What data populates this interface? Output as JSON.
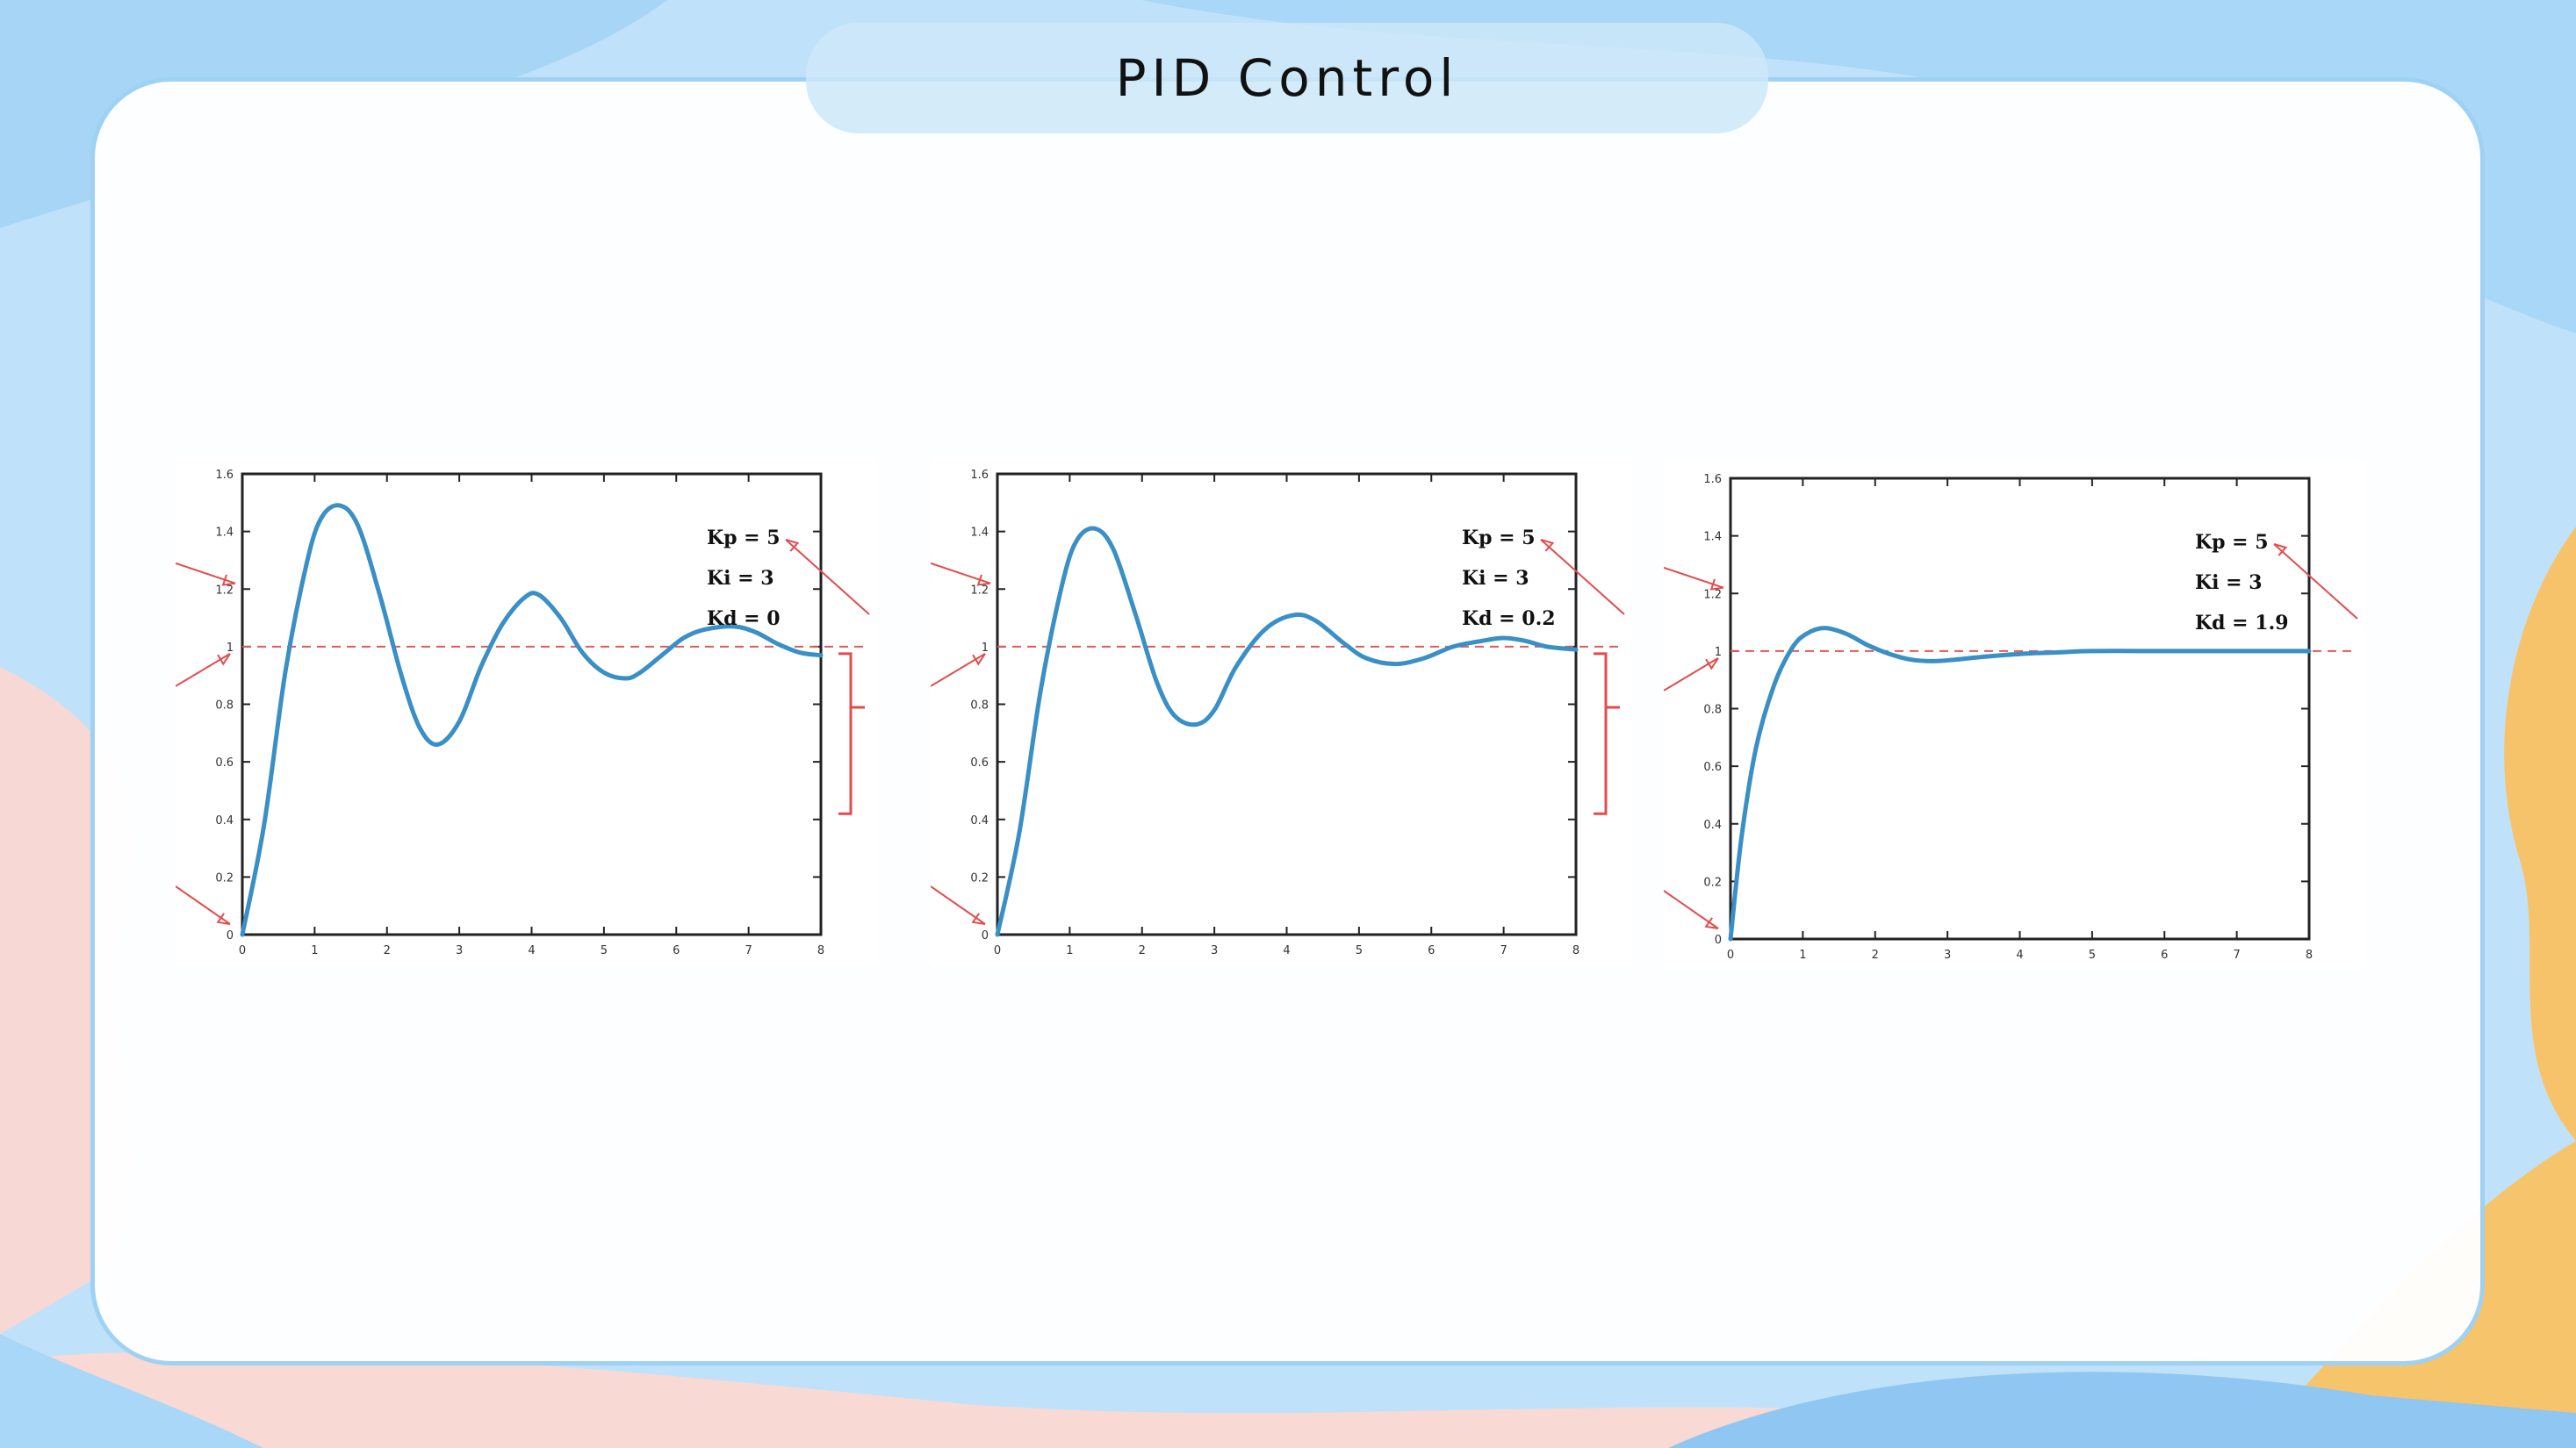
{
  "slide": {
    "title": "PID Control"
  },
  "colors": {
    "curve": "#3a8fc4",
    "reference": "#e05a5a",
    "annotation": "#e24c4c",
    "axis": "#222222",
    "card_border": "#9fd1f2"
  },
  "chart_data": [
    {
      "type": "line",
      "params": [
        "Kp = 5",
        "Ki = 3",
        "Kd = 0"
      ],
      "xlim": [
        0,
        8
      ],
      "ylim": [
        0,
        1.6
      ],
      "xticks": [
        0,
        1,
        2,
        3,
        4,
        5,
        6,
        7,
        8
      ],
      "yticks": [
        0,
        0.2,
        0.4,
        0.6,
        0.8,
        1,
        1.2,
        1.4,
        1.6
      ],
      "ytick_labels": [
        "0",
        "0.2",
        "0.4",
        "0.6",
        "0.8",
        "1",
        "1.2",
        "1.4",
        "1.6"
      ],
      "reference": 1,
      "x": [
        0,
        0.3,
        0.6,
        0.9,
        1.1,
        1.35,
        1.6,
        1.9,
        2.2,
        2.45,
        2.7,
        3.0,
        3.3,
        3.6,
        3.9,
        4.1,
        4.4,
        4.7,
        5.0,
        5.3,
        5.5,
        5.8,
        6.1,
        6.4,
        6.8,
        7.1,
        7.4,
        7.7,
        8.0
      ],
      "y": [
        0,
        0.38,
        0.92,
        1.3,
        1.45,
        1.49,
        1.42,
        1.18,
        0.9,
        0.72,
        0.66,
        0.74,
        0.93,
        1.08,
        1.17,
        1.18,
        1.1,
        0.98,
        0.91,
        0.89,
        0.91,
        0.97,
        1.03,
        1.06,
        1.07,
        1.05,
        1.01,
        0.98,
        0.97
      ]
    },
    {
      "type": "line",
      "params": [
        "Kp = 5",
        "Ki = 3",
        "Kd = 0.2"
      ],
      "xlim": [
        0,
        8
      ],
      "ylim": [
        0,
        1.6
      ],
      "xticks": [
        0,
        1,
        2,
        3,
        4,
        5,
        6,
        7,
        8
      ],
      "yticks": [
        0,
        0.2,
        0.4,
        0.6,
        0.8,
        1,
        1.2,
        1.4,
        1.6
      ],
      "ytick_labels": [
        "0",
        "0.2",
        "0.4",
        "0.6",
        "0.8",
        "1",
        "1.2",
        "1.4",
        "1.6"
      ],
      "reference": 1,
      "x": [
        0,
        0.3,
        0.6,
        0.9,
        1.1,
        1.35,
        1.6,
        1.9,
        2.2,
        2.45,
        2.75,
        3.0,
        3.3,
        3.7,
        4.1,
        4.4,
        4.8,
        5.1,
        5.5,
        5.9,
        6.3,
        6.7,
        7.0,
        7.3,
        7.6,
        8.0
      ],
      "y": [
        0,
        0.35,
        0.85,
        1.22,
        1.37,
        1.41,
        1.34,
        1.12,
        0.88,
        0.76,
        0.73,
        0.78,
        0.93,
        1.06,
        1.11,
        1.09,
        1.01,
        0.96,
        0.94,
        0.96,
        1.0,
        1.02,
        1.03,
        1.02,
        1.0,
        0.99
      ]
    },
    {
      "type": "line",
      "params": [
        "Kp = 5",
        "Ki = 3",
        "Kd = 1.9"
      ],
      "xlim": [
        0,
        8
      ],
      "ylim": [
        0,
        1.6
      ],
      "xticks": [
        0,
        1,
        2,
        3,
        4,
        5,
        6,
        7,
        8
      ],
      "yticks": [
        0,
        0.2,
        0.4,
        0.6,
        0.8,
        1,
        1.2,
        1.4,
        1.6
      ],
      "ytick_labels": [
        "0",
        "0.2",
        "0.4",
        "0.6",
        "0.8",
        "1",
        "1.2",
        "1.4",
        "1.6"
      ],
      "reference": 1,
      "x": [
        0,
        0.15,
        0.35,
        0.6,
        0.85,
        1.05,
        1.3,
        1.6,
        1.9,
        2.2,
        2.5,
        2.8,
        3.1,
        3.5,
        4.0,
        4.5,
        5.0,
        6.0,
        7.0,
        8.0
      ],
      "y": [
        0,
        0.35,
        0.66,
        0.88,
        1.01,
        1.06,
        1.08,
        1.06,
        1.02,
        0.99,
        0.97,
        0.965,
        0.97,
        0.98,
        0.99,
        0.995,
        1.0,
        1.0,
        1.0,
        1.0
      ]
    }
  ]
}
